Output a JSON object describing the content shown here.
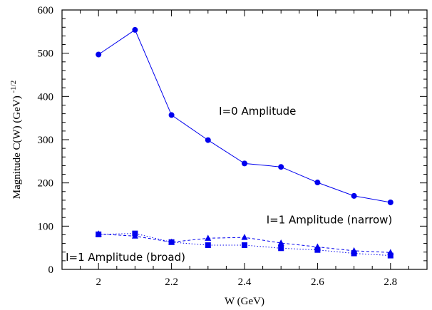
{
  "chart_data": {
    "type": "line",
    "xlabel": "W (GeV)",
    "ylabel": {
      "main": "Magnitude  C(W) (GeV)",
      "superscript": "-1/2"
    },
    "xlim": [
      1.9,
      2.9
    ],
    "ylim": [
      0,
      600
    ],
    "xticks": [
      "2",
      "2.2",
      "2.4",
      "2.6",
      "2.8"
    ],
    "yticks": [
      "0",
      "100",
      "200",
      "300",
      "400",
      "500",
      "600"
    ],
    "x": [
      2.0,
      2.1,
      2.2,
      2.3,
      2.4,
      2.5,
      2.6,
      2.7,
      2.8
    ],
    "grid": false,
    "series": [
      {
        "name": "I=0 Amplitude",
        "marker": "circle",
        "line": "solid",
        "values": [
          497,
          554,
          357,
          299,
          245,
          237,
          201,
          170,
          155
        ]
      },
      {
        "name": "I=1 Amplitude (narrow)",
        "marker": "triangle",
        "line": "dashed",
        "values": [
          82,
          77,
          63,
          72,
          74,
          61,
          52,
          43,
          39
        ]
      },
      {
        "name": "I=1 Amplitude (broad)",
        "marker": "square",
        "line": "dotted",
        "values": [
          81,
          83,
          63,
          56,
          56,
          49,
          45,
          37,
          32
        ]
      }
    ],
    "annotations": [
      {
        "text": "I=0 Amplitude",
        "x": 2.33,
        "y": 358
      },
      {
        "text": "I=1 Amplitude (narrow)",
        "x": 2.46,
        "y": 106
      },
      {
        "text": "I=1 Amplitude (broad)",
        "x": 1.91,
        "y": 20
      }
    ],
    "color": "#0000ee"
  }
}
